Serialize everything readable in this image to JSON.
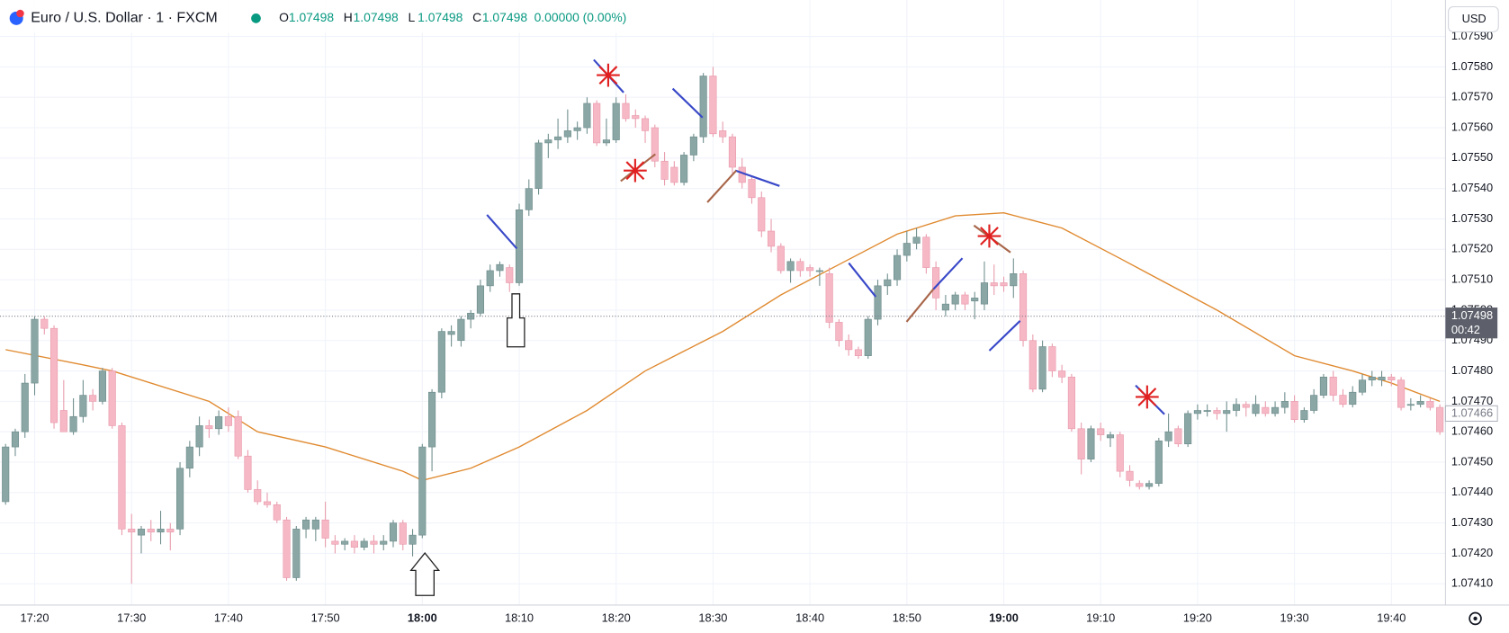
{
  "chart_data": {
    "type": "candlestick",
    "title": "Euro / U.S. Dollar · 1 · FXCM",
    "header_values": [
      {
        "label": "O",
        "value": "1.07498"
      },
      {
        "label": "H",
        "value": "1.07498"
      },
      {
        "label": "L",
        "value": "1.07498"
      },
      {
        "label": "C",
        "value": "1.07498"
      }
    ],
    "header_change": "0.00000 (0.00%)",
    "currency": "USD",
    "up_color": "#8aa6a5",
    "down_color": "#f7b8c6",
    "ma_color": "#e08a30",
    "grid": true,
    "ylim": [
      1.07403,
      1.07602
    ],
    "yticks": [
      {
        "value": 1.0741,
        "label": "1.07410"
      },
      {
        "value": 1.0742,
        "label": "1.07420"
      },
      {
        "value": 1.0743,
        "label": "1.07430"
      },
      {
        "value": 1.0744,
        "label": "1.07440"
      },
      {
        "value": 1.0745,
        "label": "1.07450"
      },
      {
        "value": 1.0746,
        "label": "1.07460"
      },
      {
        "value": 1.0747,
        "label": "1.07470"
      },
      {
        "value": 1.0748,
        "label": "1.07480"
      },
      {
        "value": 1.0749,
        "label": "1.07490"
      },
      {
        "value": 1.075,
        "label": "1.07500"
      },
      {
        "value": 1.0751,
        "label": "1.07510"
      },
      {
        "value": 1.0752,
        "label": "1.07520"
      },
      {
        "value": 1.0753,
        "label": "1.07530"
      },
      {
        "value": 1.0754,
        "label": "1.07540"
      },
      {
        "value": 1.0755,
        "label": "1.07550"
      },
      {
        "value": 1.0756,
        "label": "1.07560"
      },
      {
        "value": 1.0757,
        "label": "1.07570"
      },
      {
        "value": 1.0758,
        "label": "1.07580"
      },
      {
        "value": 1.0759,
        "label": "1.07590"
      }
    ],
    "last_price": {
      "value": 1.07498,
      "label": "1.07498",
      "countdown": "00:42"
    },
    "close_marker": {
      "value": 1.07466,
      "label": "1.07466"
    },
    "categories": [
      "17:17",
      "17:18",
      "17:19",
      "17:20",
      "17:21",
      "17:22",
      "17:23",
      "17:24",
      "17:25",
      "17:26",
      "17:27",
      "17:28",
      "17:29",
      "17:30",
      "17:31",
      "17:32",
      "17:33",
      "17:34",
      "17:35",
      "17:36",
      "17:37",
      "17:38",
      "17:39",
      "17:40",
      "17:41",
      "17:42",
      "17:43",
      "17:44",
      "17:45",
      "17:46",
      "17:47",
      "17:48",
      "17:49",
      "17:50",
      "17:51",
      "17:52",
      "17:53",
      "17:54",
      "17:55",
      "17:56",
      "17:57",
      "17:58",
      "17:59",
      "18:00",
      "18:01",
      "18:02",
      "18:03",
      "18:04",
      "18:05",
      "18:06",
      "18:07",
      "18:08",
      "18:09",
      "18:10",
      "18:11",
      "18:12",
      "18:13",
      "18:14",
      "18:15",
      "18:16",
      "18:17",
      "18:18",
      "18:19",
      "18:20",
      "18:21",
      "18:22",
      "18:23",
      "18:24",
      "18:25",
      "18:26",
      "18:27",
      "18:28",
      "18:29",
      "18:30",
      "18:31",
      "18:32",
      "18:33",
      "18:34",
      "18:35",
      "18:36",
      "18:37",
      "18:38",
      "18:39",
      "18:40",
      "18:41",
      "18:42",
      "18:43",
      "18:44",
      "18:45",
      "18:46",
      "18:47",
      "18:48",
      "18:49",
      "18:50",
      "18:51",
      "18:52",
      "18:53",
      "18:54",
      "18:55",
      "18:56",
      "18:57",
      "18:58",
      "18:59",
      "19:00",
      "19:01",
      "19:02",
      "19:03",
      "19:04",
      "19:05",
      "19:06",
      "19:07",
      "19:08",
      "19:09",
      "19:10",
      "19:11",
      "19:12",
      "19:13",
      "19:14",
      "19:15",
      "19:16",
      "19:17",
      "19:18",
      "19:19",
      "19:20",
      "19:21",
      "19:22",
      "19:23",
      "19:24",
      "19:25",
      "19:26",
      "19:27",
      "19:28",
      "19:29",
      "19:30",
      "19:31",
      "19:32",
      "19:33",
      "19:34",
      "19:35",
      "19:36",
      "19:37",
      "19:38",
      "19:39",
      "19:40",
      "19:41",
      "19:42",
      "19:43",
      "19:44",
      "19:45"
    ],
    "ohlc": [
      [
        1.07437,
        1.07456,
        1.07436,
        1.07455
      ],
      [
        1.07455,
        1.07461,
        1.07452,
        1.0746
      ],
      [
        1.0746,
        1.07479,
        1.07458,
        1.07476
      ],
      [
        1.07476,
        1.07498,
        1.07472,
        1.07497
      ],
      [
        1.07497,
        1.07498,
        1.07492,
        1.07494
      ],
      [
        1.07494,
        1.07495,
        1.07461,
        1.07463
      ],
      [
        1.07467,
        1.07477,
        1.0746,
        1.0746
      ],
      [
        1.0746,
        1.07471,
        1.07459,
        1.07465
      ],
      [
        1.07465,
        1.07477,
        1.07463,
        1.07472
      ],
      [
        1.07472,
        1.07474,
        1.07467,
        1.0747
      ],
      [
        1.0747,
        1.07481,
        1.07469,
        1.0748
      ],
      [
        1.0748,
        1.07481,
        1.07461,
        1.07462
      ],
      [
        1.07462,
        1.07463,
        1.07426,
        1.07428
      ],
      [
        1.07428,
        1.07433,
        1.0741,
        1.07427
      ],
      [
        1.07426,
        1.07429,
        1.0742,
        1.07428
      ],
      [
        1.07428,
        1.07431,
        1.07424,
        1.07427
      ],
      [
        1.07427,
        1.07434,
        1.07423,
        1.07428
      ],
      [
        1.07428,
        1.0743,
        1.07421,
        1.07427
      ],
      [
        1.07428,
        1.0745,
        1.07426,
        1.07448
      ],
      [
        1.07448,
        1.07457,
        1.07445,
        1.07455
      ],
      [
        1.07455,
        1.07465,
        1.07452,
        1.07462
      ],
      [
        1.07462,
        1.07464,
        1.07458,
        1.07461
      ],
      [
        1.07461,
        1.07467,
        1.07459,
        1.07465
      ],
      [
        1.07465,
        1.07468,
        1.0746,
        1.07462
      ],
      [
        1.07465,
        1.07467,
        1.07451,
        1.07452
      ],
      [
        1.07452,
        1.07454,
        1.0744,
        1.07441
      ],
      [
        1.07441,
        1.07444,
        1.07436,
        1.07437
      ],
      [
        1.07437,
        1.0744,
        1.07435,
        1.07436
      ],
      [
        1.07436,
        1.07437,
        1.0743,
        1.07431
      ],
      [
        1.07431,
        1.07432,
        1.07411,
        1.07412
      ],
      [
        1.07412,
        1.07429,
        1.07411,
        1.07428
      ],
      [
        1.07428,
        1.07432,
        1.07425,
        1.07431
      ],
      [
        1.07428,
        1.07432,
        1.07424,
        1.07431
      ],
      [
        1.07431,
        1.07437,
        1.07422,
        1.07425
      ],
      [
        1.07424,
        1.07426,
        1.0742,
        1.07423
      ],
      [
        1.07423,
        1.07425,
        1.07421,
        1.07424
      ],
      [
        1.07424,
        1.07426,
        1.0742,
        1.07422
      ],
      [
        1.07422,
        1.07425,
        1.07421,
        1.07424
      ],
      [
        1.07424,
        1.07426,
        1.0742,
        1.07423
      ],
      [
        1.07423,
        1.07426,
        1.07421,
        1.07424
      ],
      [
        1.07424,
        1.07431,
        1.07422,
        1.0743
      ],
      [
        1.0743,
        1.07431,
        1.07421,
        1.07423
      ],
      [
        1.07423,
        1.07428,
        1.07419,
        1.07426
      ],
      [
        1.07426,
        1.07456,
        1.07425,
        1.07455
      ],
      [
        1.07455,
        1.07474,
        1.07447,
        1.07473
      ],
      [
        1.07473,
        1.07494,
        1.07471,
        1.07493
      ],
      [
        1.07492,
        1.07495,
        1.07488,
        1.07493
      ],
      [
        1.0749,
        1.07498,
        1.07488,
        1.07497
      ],
      [
        1.07497,
        1.075,
        1.07494,
        1.07499
      ],
      [
        1.07499,
        1.0751,
        1.07498,
        1.07508
      ],
      [
        1.07508,
        1.07515,
        1.07506,
        1.07513
      ],
      [
        1.07513,
        1.07516,
        1.07511,
        1.07515
      ],
      [
        1.07514,
        1.07515,
        1.07506,
        1.07509
      ],
      [
        1.07509,
        1.07535,
        1.07508,
        1.07533
      ],
      [
        1.07533,
        1.07543,
        1.07531,
        1.0754
      ],
      [
        1.0754,
        1.07556,
        1.07538,
        1.07555
      ],
      [
        1.07555,
        1.07558,
        1.0755,
        1.07556
      ],
      [
        1.07556,
        1.07563,
        1.07553,
        1.07557
      ],
      [
        1.07557,
        1.07566,
        1.07555,
        1.07559
      ],
      [
        1.07559,
        1.07562,
        1.07556,
        1.0756
      ],
      [
        1.0756,
        1.0757,
        1.07558,
        1.07568
      ],
      [
        1.07568,
        1.07569,
        1.07554,
        1.07555
      ],
      [
        1.07555,
        1.07563,
        1.07554,
        1.07556
      ],
      [
        1.07556,
        1.0757,
        1.07555,
        1.07568
      ],
      [
        1.07568,
        1.07571,
        1.07562,
        1.07563
      ],
      [
        1.07564,
        1.07566,
        1.0756,
        1.07563
      ],
      [
        1.07563,
        1.07564,
        1.07555,
        1.07559
      ],
      [
        1.0756,
        1.07561,
        1.07547,
        1.07549
      ],
      [
        1.07549,
        1.07552,
        1.07541,
        1.07543
      ],
      [
        1.07547,
        1.07549,
        1.07541,
        1.07542
      ],
      [
        1.07542,
        1.07552,
        1.07541,
        1.07551
      ],
      [
        1.07551,
        1.07558,
        1.07549,
        1.07557
      ],
      [
        1.07557,
        1.07578,
        1.07555,
        1.07577
      ],
      [
        1.07577,
        1.0758,
        1.07557,
        1.07558
      ],
      [
        1.07559,
        1.07562,
        1.07555,
        1.07557
      ],
      [
        1.07557,
        1.07558,
        1.07545,
        1.07547
      ],
      [
        1.07547,
        1.0755,
        1.0754,
        1.07542
      ],
      [
        1.07543,
        1.07544,
        1.07535,
        1.07537
      ],
      [
        1.07537,
        1.07539,
        1.07524,
        1.07526
      ],
      [
        1.07526,
        1.0753,
        1.07519,
        1.07521
      ],
      [
        1.07521,
        1.07522,
        1.07512,
        1.07513
      ],
      [
        1.07513,
        1.07517,
        1.07509,
        1.07516
      ],
      [
        1.07516,
        1.07517,
        1.07511,
        1.07513
      ],
      [
        1.07514,
        1.07515,
        1.07511,
        1.07513
      ],
      [
        1.07513,
        1.07514,
        1.07508,
        1.07513
      ],
      [
        1.07512,
        1.07514,
        1.07494,
        1.07496
      ],
      [
        1.07496,
        1.07497,
        1.07488,
        1.0749
      ],
      [
        1.0749,
        1.07492,
        1.07485,
        1.07487
      ],
      [
        1.07487,
        1.07488,
        1.07484,
        1.07485
      ],
      [
        1.07485,
        1.07498,
        1.07484,
        1.07497
      ],
      [
        1.07497,
        1.0751,
        1.07495,
        1.07508
      ],
      [
        1.07508,
        1.07512,
        1.07505,
        1.0751
      ],
      [
        1.0751,
        1.0752,
        1.07508,
        1.07518
      ],
      [
        1.07518,
        1.07526,
        1.07516,
        1.07522
      ],
      [
        1.07522,
        1.07527,
        1.0752,
        1.07524
      ],
      [
        1.07524,
        1.07525,
        1.07512,
        1.07514
      ],
      [
        1.07514,
        1.07516,
        1.075,
        1.07504
      ],
      [
        1.075,
        1.07505,
        1.07498,
        1.07502
      ],
      [
        1.07502,
        1.07506,
        1.075,
        1.07505
      ],
      [
        1.07505,
        1.07506,
        1.075,
        1.07502
      ],
      [
        1.07503,
        1.07506,
        1.07497,
        1.07504
      ],
      [
        1.07502,
        1.07516,
        1.075,
        1.07509
      ],
      [
        1.07509,
        1.07515,
        1.07505,
        1.07508
      ],
      [
        1.07509,
        1.07511,
        1.07506,
        1.07508
      ],
      [
        1.07508,
        1.07517,
        1.07504,
        1.07512
      ],
      [
        1.07512,
        1.07513,
        1.07488,
        1.0749
      ],
      [
        1.0749,
        1.07492,
        1.07473,
        1.07474
      ],
      [
        1.07474,
        1.0749,
        1.07473,
        1.07488
      ],
      [
        1.07488,
        1.07489,
        1.07478,
        1.0748
      ],
      [
        1.0748,
        1.07482,
        1.07476,
        1.07478
      ],
      [
        1.07478,
        1.07479,
        1.0746,
        1.07461
      ],
      [
        1.07461,
        1.07463,
        1.07446,
        1.07451
      ],
      [
        1.07451,
        1.07462,
        1.0745,
        1.07461
      ],
      [
        1.07461,
        1.07463,
        1.07457,
        1.07459
      ],
      [
        1.07458,
        1.0746,
        1.07455,
        1.07459
      ],
      [
        1.07459,
        1.0746,
        1.07445,
        1.07447
      ],
      [
        1.07447,
        1.07449,
        1.07442,
        1.07444
      ],
      [
        1.07443,
        1.07444,
        1.07441,
        1.07442
      ],
      [
        1.07442,
        1.07444,
        1.07441,
        1.07443
      ],
      [
        1.07443,
        1.07458,
        1.07442,
        1.07457
      ],
      [
        1.07457,
        1.07466,
        1.07455,
        1.0746
      ],
      [
        1.07461,
        1.07462,
        1.07455,
        1.07456
      ],
      [
        1.07456,
        1.07467,
        1.07455,
        1.07466
      ],
      [
        1.07466,
        1.07469,
        1.07464,
        1.07467
      ],
      [
        1.07467,
        1.07469,
        1.07465,
        1.07467
      ],
      [
        1.07467,
        1.07468,
        1.07464,
        1.07466
      ],
      [
        1.07466,
        1.0747,
        1.0746,
        1.07467
      ],
      [
        1.07467,
        1.07471,
        1.07465,
        1.07469
      ],
      [
        1.07469,
        1.0747,
        1.07465,
        1.07468
      ],
      [
        1.07466,
        1.07472,
        1.07465,
        1.07469
      ],
      [
        1.07468,
        1.0747,
        1.07465,
        1.07466
      ],
      [
        1.07466,
        1.0747,
        1.07465,
        1.07468
      ],
      [
        1.07468,
        1.07473,
        1.07466,
        1.0747
      ],
      [
        1.0747,
        1.07472,
        1.07463,
        1.07464
      ],
      [
        1.07464,
        1.07468,
        1.07463,
        1.07467
      ],
      [
        1.07467,
        1.07474,
        1.07466,
        1.07472
      ],
      [
        1.07472,
        1.07479,
        1.07471,
        1.07478
      ],
      [
        1.07478,
        1.0748,
        1.0747,
        1.07472
      ],
      [
        1.07472,
        1.07474,
        1.07468,
        1.07469
      ],
      [
        1.07469,
        1.07475,
        1.07468,
        1.07473
      ],
      [
        1.07473,
        1.07479,
        1.07472,
        1.07477
      ],
      [
        1.07477,
        1.0748,
        1.07475,
        1.07478
      ],
      [
        1.07477,
        1.0748,
        1.07475,
        1.07478
      ],
      [
        1.07478,
        1.07479,
        1.07475,
        1.07477
      ],
      [
        1.07477,
        1.07478,
        1.07467,
        1.07468
      ],
      [
        1.07469,
        1.07471,
        1.07467,
        1.07469
      ],
      [
        1.07469,
        1.07472,
        1.07468,
        1.0747
      ],
      [
        1.0747,
        1.07471,
        1.07467,
        1.07468
      ],
      [
        1.07468,
        1.07469,
        1.07459,
        1.0746
      ]
    ],
    "ma": {
      "x": [
        "17:17",
        "17:25",
        "17:28",
        "17:38",
        "17:43",
        "17:50",
        "17:58",
        "18:00",
        "18:05",
        "18:10",
        "18:17",
        "18:23",
        "18:31",
        "18:37",
        "18:43",
        "18:49",
        "18:55",
        "19:00",
        "19:06",
        "19:12",
        "19:22",
        "19:30",
        "19:36",
        "19:40",
        "19:45"
      ],
      "values": [
        1.07487,
        1.07482,
        1.0748,
        1.0747,
        1.0746,
        1.07455,
        1.07447,
        1.07444,
        1.07448,
        1.07455,
        1.07467,
        1.0748,
        1.07493,
        1.07505,
        1.07515,
        1.07525,
        1.07531,
        1.07532,
        1.07527,
        1.07517,
        1.075,
        1.07485,
        1.0748,
        1.07476,
        1.0747
      ]
    }
  }
}
